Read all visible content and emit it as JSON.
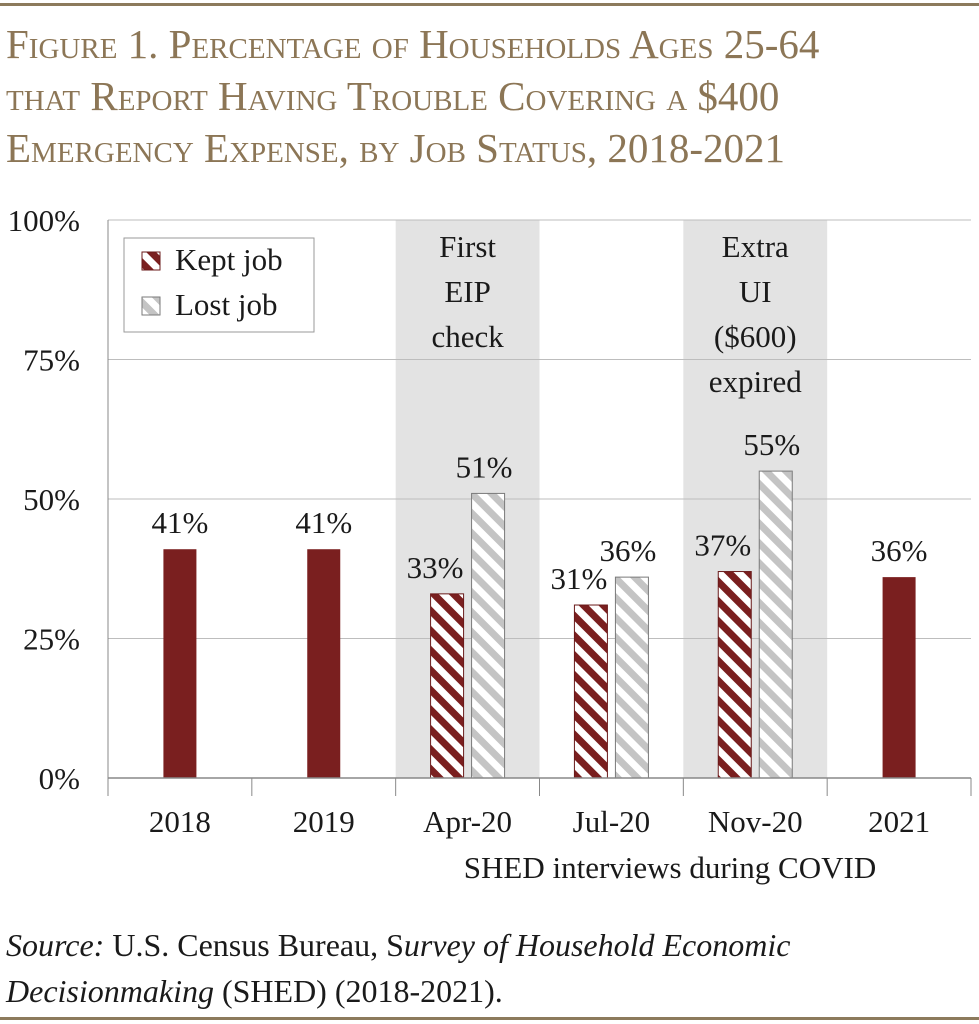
{
  "title_lines": [
    "Figure 1. Percentage of Households Ages 25-64",
    "that Report Having Trouble Covering a $400",
    "Emergency Expense, by Job Status, 2018-2021"
  ],
  "source": {
    "label": "Source:",
    "agency": " U.S. Census Bureau, S",
    "survey_name": "urvey of Household Economic Decisionmaking",
    "rest": " (SHED) (2018-2021)."
  },
  "colors": {
    "kept": "#7a1f1f",
    "lost": "#c8c8c8",
    "shade": "#e3e3e3",
    "grid": "#bdbdbd",
    "title": "#8c7656"
  },
  "chart_data": {
    "type": "bar",
    "categories": [
      "2018",
      "2019",
      "Apr-20",
      "Jul-20",
      "Nov-20",
      "2021"
    ],
    "series": [
      {
        "name": "Kept job",
        "values": [
          41,
          41,
          33,
          31,
          37,
          36
        ],
        "value_labels": [
          "41%",
          "41%",
          "33%",
          "31%",
          "37%",
          "36%"
        ]
      },
      {
        "name": "Lost job",
        "values": [
          null,
          null,
          51,
          36,
          55,
          null
        ],
        "value_labels": [
          null,
          null,
          "51%",
          "36%",
          "55%",
          null
        ]
      }
    ],
    "ylim": [
      0,
      100
    ],
    "yticks": [
      0,
      25,
      50,
      75,
      100
    ],
    "ytick_labels": [
      "0%",
      "25%",
      "50%",
      "75%",
      "100%"
    ],
    "xlabel": "SHED interviews during COVID",
    "grid": true,
    "legend": "top-left",
    "annotations": [
      {
        "category": "Apr-20",
        "lines": [
          "First",
          "EIP",
          "check"
        ]
      },
      {
        "category": "Nov-20",
        "lines": [
          "Extra",
          "UI",
          "($600)",
          "expired"
        ]
      }
    ]
  }
}
